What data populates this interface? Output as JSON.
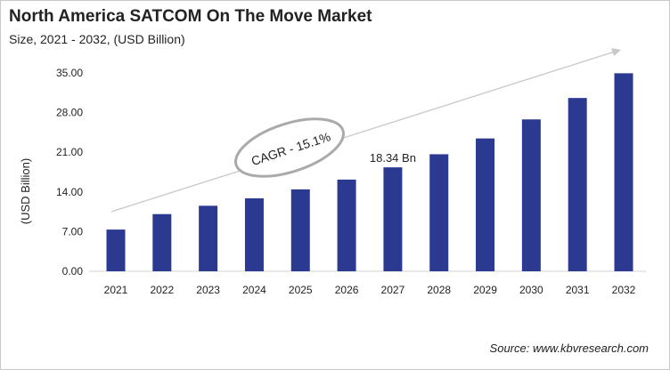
{
  "chart_data": {
    "type": "bar",
    "title": "North America SATCOM On The Move Market",
    "subtitle": "Size, 2021 - 2032, (USD Billion)",
    "xlabel": "",
    "ylabel": "(USD Billion)",
    "ylim": [
      0,
      35
    ],
    "yticks": [
      "0.00",
      "7.00",
      "14.00",
      "21.00",
      "28.00",
      "35.00"
    ],
    "categories": [
      "2021",
      "2022",
      "2023",
      "2024",
      "2025",
      "2026",
      "2027",
      "2028",
      "2029",
      "2030",
      "2031",
      "2032"
    ],
    "values": [
      7.36,
      10.09,
      11.56,
      12.87,
      14.45,
      16.18,
      18.34,
      20.65,
      23.44,
      26.8,
      30.58,
      34.94
    ],
    "data_labels": [
      {
        "category": "2027",
        "text": "18.34 Bn"
      }
    ],
    "annotation": "CAGR - 15.1%",
    "bar_color": "#2b3990",
    "grid": false,
    "legend": "none"
  },
  "source": "Source: www.kbvresearch.com"
}
